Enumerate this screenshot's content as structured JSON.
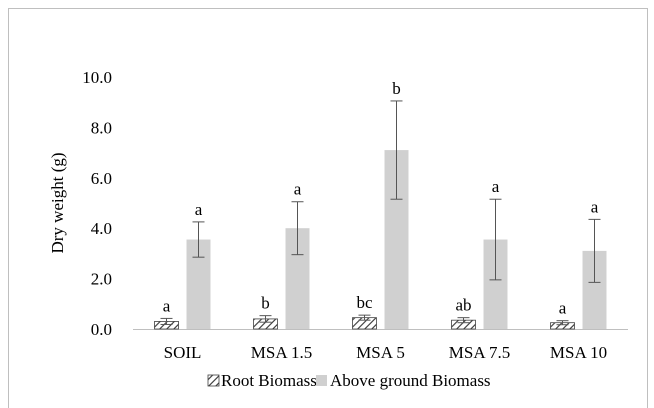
{
  "chart_data": {
    "type": "bar",
    "title": "",
    "xlabel": "",
    "ylabel": "Dry weight (g)",
    "ylim": [
      0,
      10
    ],
    "yticks": [
      "0.0",
      "2.0",
      "4.0",
      "6.0",
      "8.0",
      "10.0"
    ],
    "grid": false,
    "legend_position": "bottom",
    "categories": [
      "SOIL",
      "MSA 1.5",
      "MSA 5",
      "MSA 7.5",
      "MSA 10"
    ],
    "series": [
      {
        "name": "Root Biomass",
        "pattern": "hatched",
        "color": "#595959",
        "values": [
          0.3,
          0.4,
          0.45,
          0.35,
          0.25
        ],
        "errors": [
          0.12,
          0.13,
          0.1,
          0.1,
          0.08
        ],
        "letters": [
          "a",
          "b",
          "bc",
          "ab",
          "a"
        ]
      },
      {
        "name": "Above ground Biomass",
        "pattern": "solid",
        "color": "#d0d0d0",
        "values": [
          3.55,
          4.0,
          7.1,
          3.55,
          3.1
        ],
        "errors": [
          0.7,
          1.05,
          1.95,
          1.6,
          1.25
        ],
        "letters": [
          "a",
          "a",
          "b",
          "a",
          "a"
        ]
      }
    ]
  }
}
